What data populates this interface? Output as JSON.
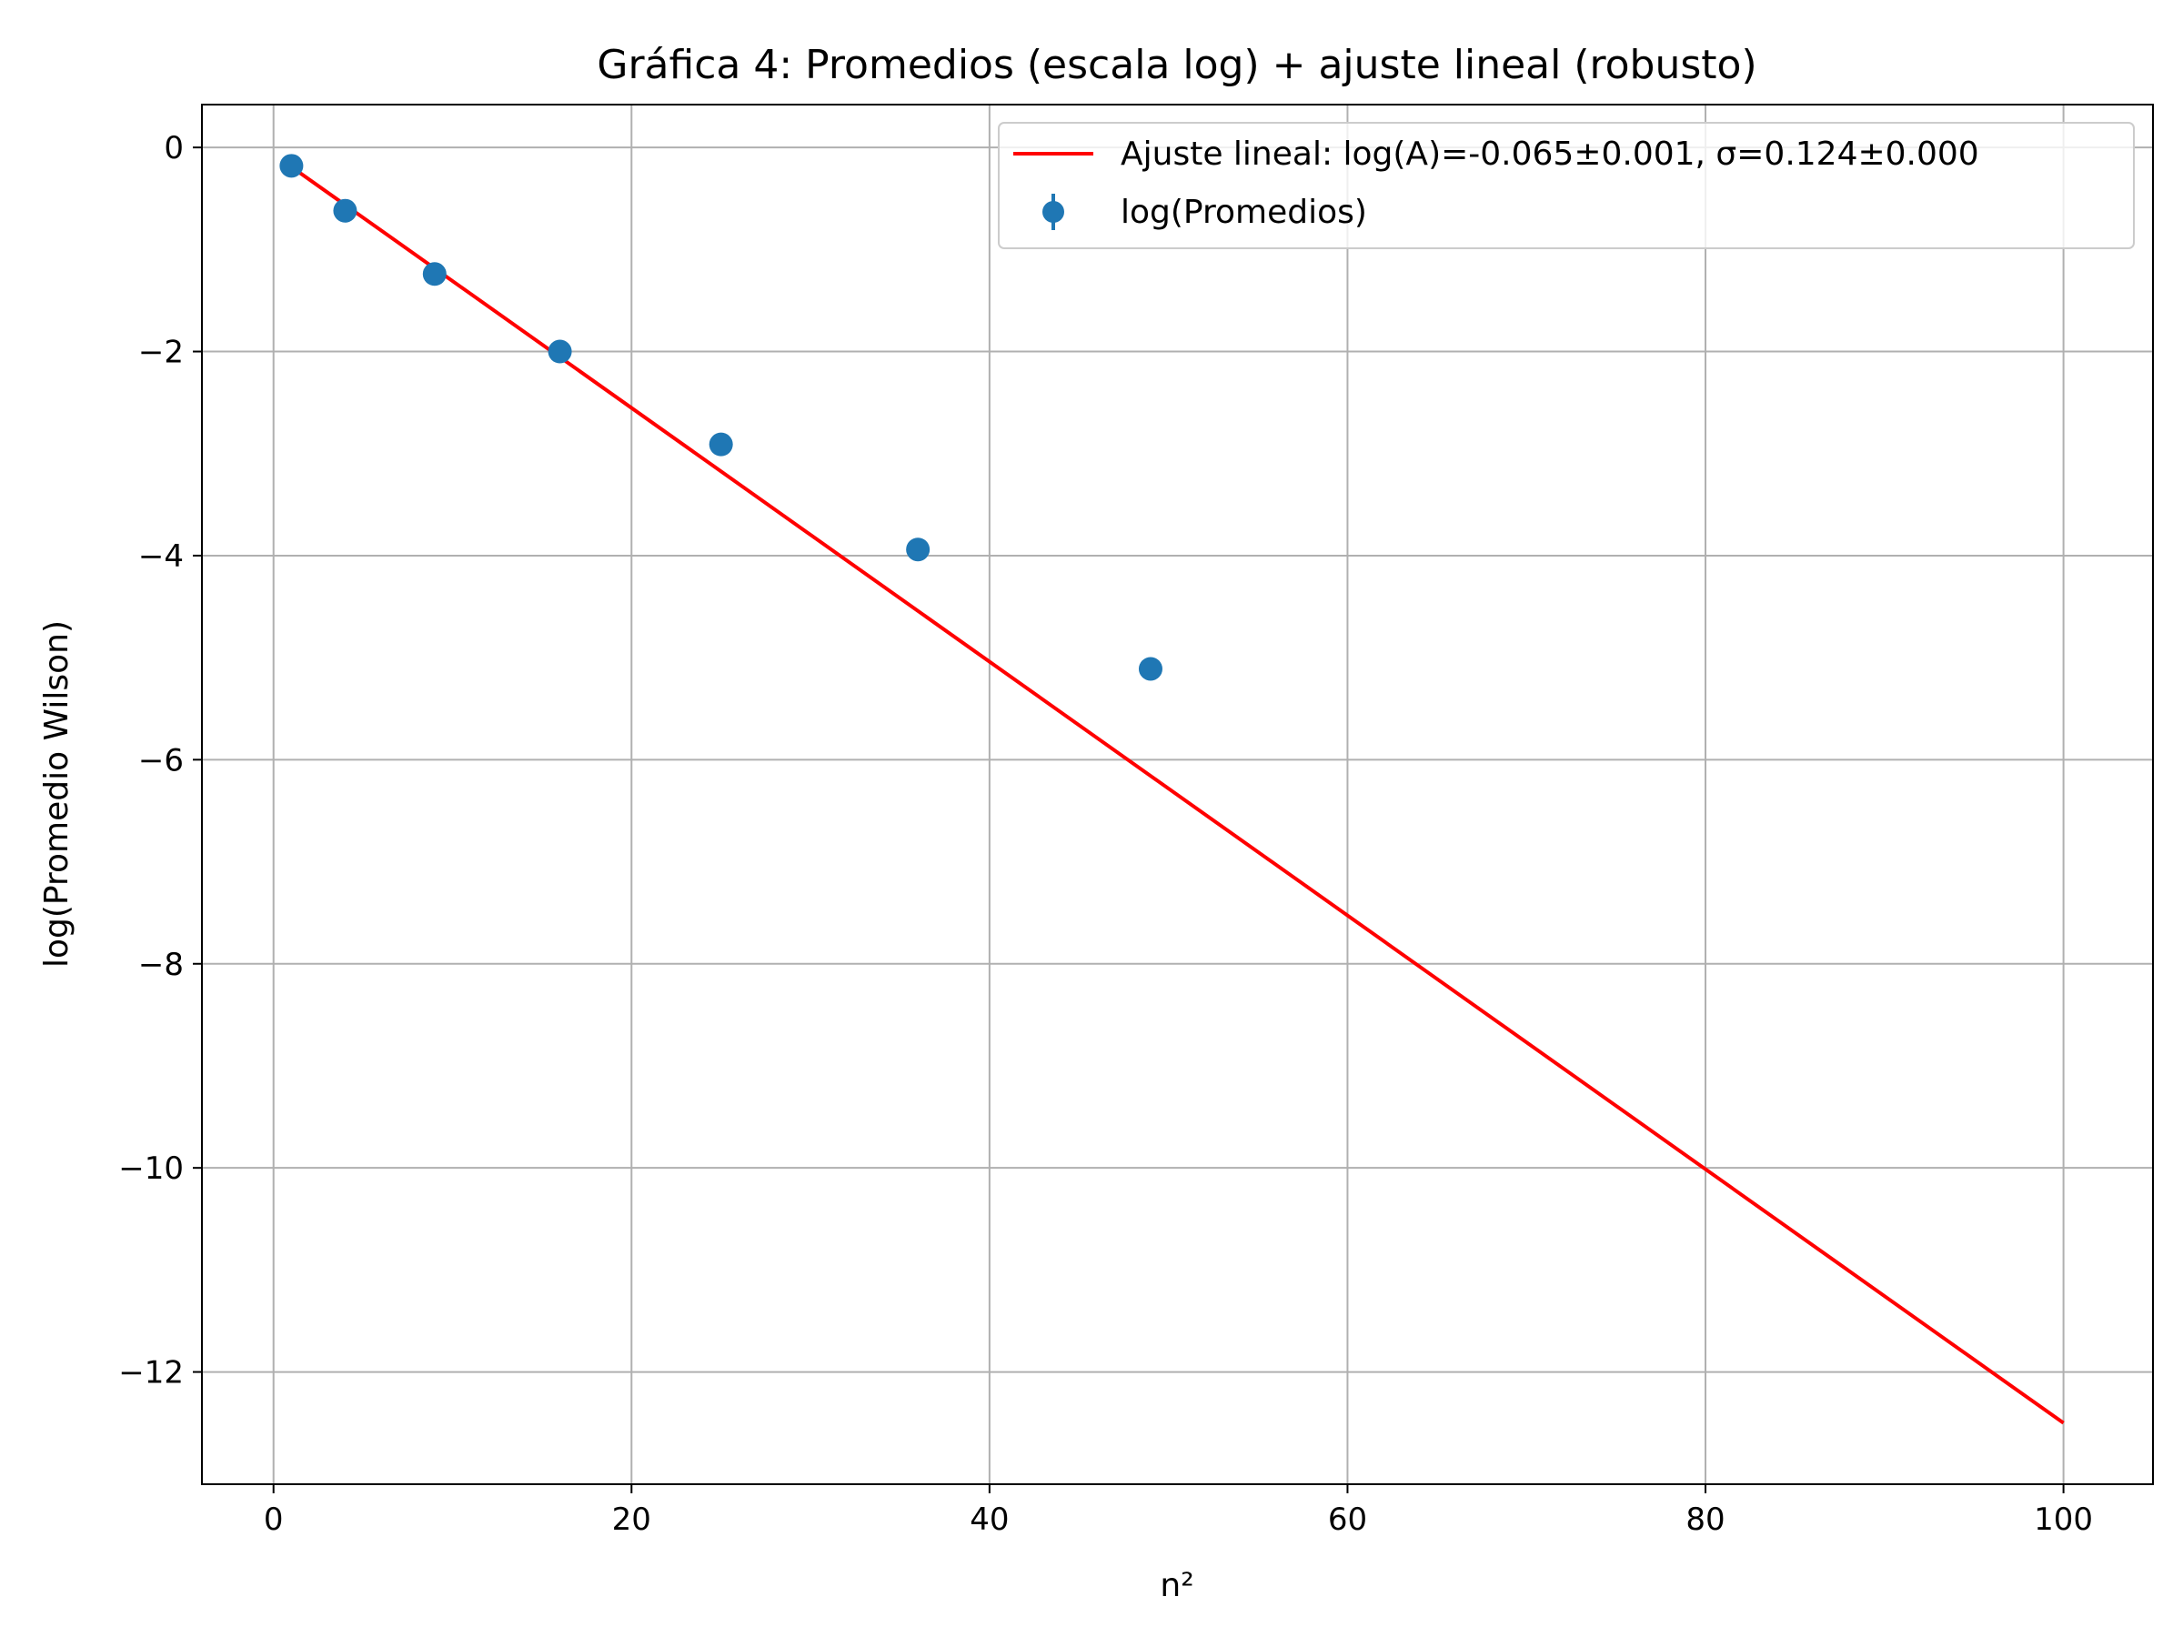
{
  "chart_data": {
    "type": "scatter",
    "title": "Gráfica 4: Promedios (escala log) + ajuste lineal (robusto)",
    "xlabel": "n²",
    "ylabel": "log(Promedio Wilson)",
    "xlim": [
      -4,
      105
    ],
    "ylim": [
      -13.1,
      0.42
    ],
    "xticks": [
      0,
      20,
      40,
      60,
      80,
      100
    ],
    "yticks": [
      0,
      -2,
      -4,
      -6,
      -8,
      -10,
      -12
    ],
    "xtick_labels": [
      "0",
      "20",
      "40",
      "60",
      "80",
      "100"
    ],
    "ytick_labels": [
      "0",
      "−2",
      "−4",
      "−6",
      "−8",
      "−10",
      "−12"
    ],
    "grid": true,
    "legend_position": "top-right",
    "series": [
      {
        "name": "Ajuste lineal: log(A)=-0.065±0.001, σ=0.124±0.000",
        "kind": "line",
        "color": "#ff0000",
        "x": [
          1,
          100
        ],
        "y": [
          -0.19,
          -12.5
        ]
      },
      {
        "name": "log(Promedios)",
        "kind": "errorbar-scatter",
        "color": "#1f77b4",
        "x": [
          1,
          4,
          9,
          16,
          25,
          36,
          49
        ],
        "y": [
          -0.18,
          -0.62,
          -1.24,
          -2.0,
          -2.91,
          -3.94,
          -5.11
        ]
      }
    ]
  }
}
